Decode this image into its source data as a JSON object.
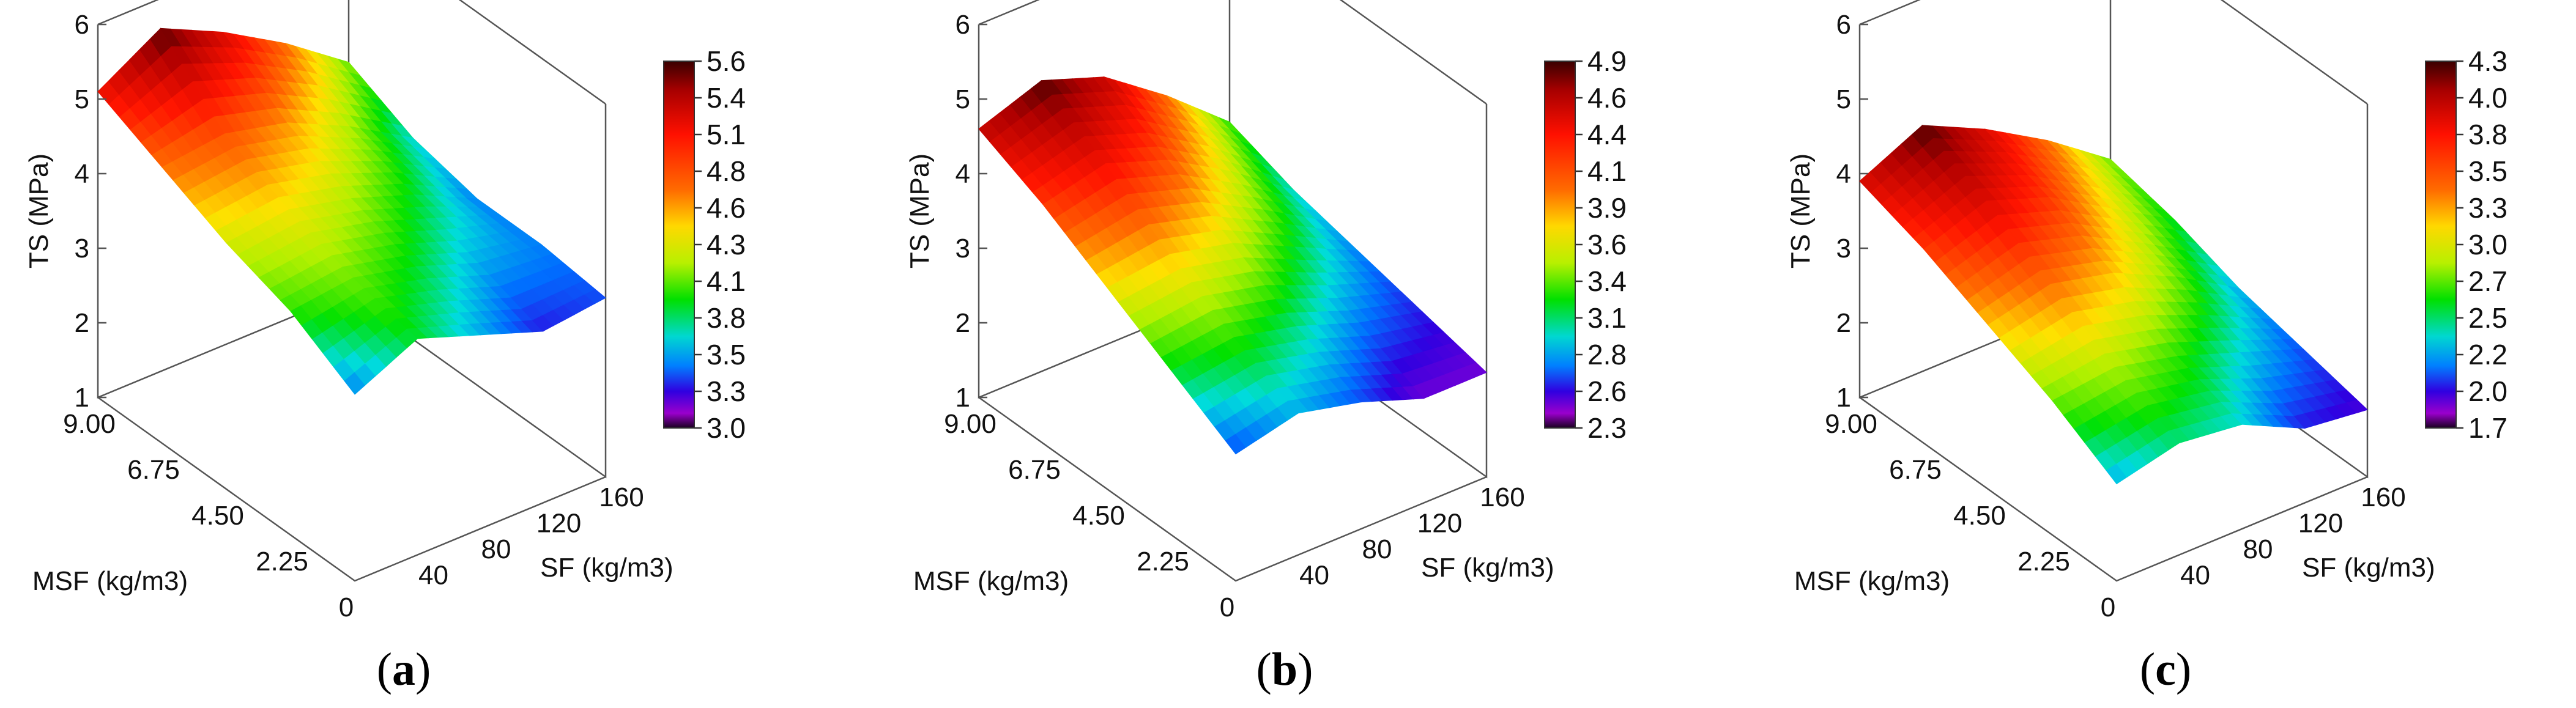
{
  "chart_data": [
    {
      "type": "surface3d",
      "panel": "a",
      "caption_letter": "a",
      "zlabel": "TS (MPa)",
      "xlabel": "MSF (kg/m3)",
      "ylabel": "SF (kg/m3)",
      "z_ticks": [
        "1",
        "2",
        "3",
        "4",
        "5",
        "6"
      ],
      "msf_ticks": [
        "9.00",
        "6.75",
        "4.50",
        "2.25",
        "0"
      ],
      "sf_ticks": [
        "40",
        "80",
        "120",
        "160"
      ],
      "msf": [
        0,
        2.25,
        4.5,
        6.75,
        9.0
      ],
      "sf": [
        0,
        40,
        80,
        120,
        160
      ],
      "z": [
        [
          3.5,
          3.9,
          3.6,
          3.3,
          3.4
        ],
        [
          4.0,
          4.1,
          3.9,
          3.6,
          3.5
        ],
        [
          4.3,
          4.4,
          4.2,
          3.9,
          3.5
        ],
        [
          4.7,
          4.8,
          4.6,
          4.2,
          3.7
        ],
        [
          5.1,
          5.6,
          5.2,
          4.7,
          4.1
        ]
      ],
      "zlim": [
        1,
        6
      ],
      "colorbar": [
        "5.6",
        "5.4",
        "5.1",
        "4.8",
        "4.6",
        "4.3",
        "4.1",
        "3.8",
        "3.5",
        "3.3",
        "3.0"
      ],
      "cmin": 3.0,
      "cmax": 5.6
    },
    {
      "type": "surface3d",
      "panel": "b",
      "caption_letter": "b",
      "zlabel": "TS (MPa)",
      "xlabel": "MSF (kg/m3)",
      "ylabel": "SF (kg/m3)",
      "z_ticks": [
        "1",
        "2",
        "3",
        "4",
        "5",
        "6"
      ],
      "msf_ticks": [
        "9.00",
        "6.75",
        "4.50",
        "2.25",
        "0"
      ],
      "sf_ticks": [
        "40",
        "80",
        "120",
        "160"
      ],
      "msf": [
        0,
        2.25,
        4.5,
        6.75,
        9.0
      ],
      "sf": [
        0,
        40,
        80,
        120,
        160
      ],
      "z": [
        [
          2.7,
          2.9,
          2.7,
          2.4,
          2.4
        ],
        [
          3.2,
          3.3,
          3.1,
          2.8,
          2.6
        ],
        [
          3.7,
          3.8,
          3.6,
          3.2,
          2.8
        ],
        [
          4.2,
          4.4,
          4.1,
          3.6,
          3.0
        ],
        [
          4.6,
          4.9,
          4.6,
          4.0,
          3.3
        ]
      ],
      "zlim": [
        1,
        6
      ],
      "colorbar": [
        "4.9",
        "4.6",
        "4.4",
        "4.1",
        "3.9",
        "3.6",
        "3.4",
        "3.1",
        "2.8",
        "2.6",
        "2.3"
      ],
      "cmin": 2.3,
      "cmax": 4.9
    },
    {
      "type": "surface3d",
      "panel": "c",
      "caption_letter": "c",
      "zlabel": "TS (MPa)",
      "xlabel": "MSF (kg/m3)",
      "ylabel": "SF (kg/m3)",
      "z_ticks": [
        "1",
        "2",
        "3",
        "4",
        "5",
        "6"
      ],
      "msf_ticks": [
        "9.00",
        "6.75",
        "4.50",
        "2.25",
        "0"
      ],
      "sf_ticks": [
        "40",
        "80",
        "120",
        "160"
      ],
      "msf": [
        0,
        2.25,
        4.5,
        6.75,
        9.0
      ],
      "sf": [
        0,
        40,
        80,
        120,
        160
      ],
      "z": [
        [
          2.3,
          2.5,
          2.4,
          2.0,
          1.9
        ],
        [
          2.8,
          2.9,
          2.7,
          2.4,
          2.1
        ],
        [
          3.2,
          3.4,
          3.2,
          2.8,
          2.3
        ],
        [
          3.6,
          3.9,
          3.6,
          3.1,
          2.6
        ],
        [
          3.9,
          4.3,
          3.9,
          3.4,
          2.8
        ]
      ],
      "zlim": [
        1,
        6
      ],
      "colorbar": [
        "4.3",
        "4.0",
        "3.8",
        "3.5",
        "3.3",
        "3.0",
        "2.7",
        "2.5",
        "2.2",
        "2.0",
        "1.7"
      ],
      "cmin": 1.7,
      "cmax": 4.3
    }
  ]
}
